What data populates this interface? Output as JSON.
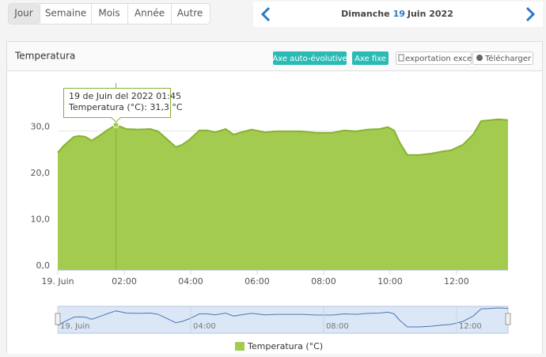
{
  "tabs": [
    "Jour",
    "Semaine",
    "Mois",
    "Année",
    "Autre"
  ],
  "date": {
    "weekday": "Dimanche",
    "day": "19",
    "month_year": "Juin 2022"
  },
  "panel": {
    "title": "Temperatura",
    "buttons": [
      "Axe auto-évolutive",
      "Axe fixe",
      "exportation excel",
      "Télécharger"
    ]
  },
  "chart_data": {
    "type": "area",
    "x": [
      0,
      0.17,
      0.48,
      0.64,
      0.83,
      1.02,
      1.24,
      1.48,
      1.75,
      2.07,
      2.43,
      2.79,
      3.02,
      3.26,
      3.55,
      3.74,
      3.98,
      4.26,
      4.5,
      4.74,
      5.05,
      5.29,
      5.52,
      5.83,
      6.24,
      6.6,
      7.31,
      7.79,
      8.26,
      8.62,
      8.98,
      9.33,
      9.69,
      9.93,
      10.12,
      10.29,
      10.52,
      10.88,
      11.24,
      11.6,
      11.83,
      12.19,
      12.5,
      12.74,
      13.02,
      13.26,
      13.55
    ],
    "series": [
      {
        "name": "Temperatura (°C)",
        "color": "#a3cb4f",
        "line_color": "#86b233",
        "values": [
          25.3,
          26.7,
          28.7,
          28.9,
          28.7,
          27.9,
          28.9,
          30.1,
          31.3,
          30.4,
          30.3,
          30.4,
          29.9,
          28.4,
          26.5,
          27.0,
          28.2,
          30.1,
          30.1,
          29.7,
          30.4,
          29.2,
          29.7,
          30.3,
          29.7,
          29.9,
          29.9,
          29.6,
          29.6,
          30.1,
          29.9,
          30.3,
          30.4,
          30.8,
          30.1,
          27.5,
          24.8,
          24.8,
          25.1,
          25.6,
          25.8,
          27.0,
          29.2,
          32.1,
          32.3,
          32.5,
          32.3
        ]
      }
    ],
    "xlim": [
      0,
      13.55
    ],
    "xticks": [
      {
        "value": 0,
        "label": "19. Juin"
      },
      {
        "value": 2,
        "label": "02:00"
      },
      {
        "value": 4,
        "label": "04:00"
      },
      {
        "value": 6,
        "label": "06:00"
      },
      {
        "value": 8,
        "label": "08:00"
      },
      {
        "value": 10,
        "label": "10:00"
      },
      {
        "value": 12,
        "label": "12:00"
      }
    ],
    "ylim": [
      0,
      40.3
    ],
    "yticks": [
      {
        "value": 0,
        "label": "0,0"
      },
      {
        "value": 10,
        "label": "10,0"
      },
      {
        "value": 20,
        "label": "20,0"
      },
      {
        "value": 30,
        "label": "30,0"
      }
    ],
    "grid": true,
    "tooltip": {
      "x": 1.75,
      "value": 31.3,
      "title": "19 de Juin del 2022 01:45",
      "text": "Temperatura (°C): 31,3 °C"
    },
    "navigator": {
      "xticks": [
        {
          "value": 0,
          "label": "19. Juin"
        },
        {
          "value": 4,
          "label": "04:00"
        },
        {
          "value": 8,
          "label": "08:00"
        },
        {
          "value": 12,
          "label": "12:00"
        }
      ]
    }
  }
}
